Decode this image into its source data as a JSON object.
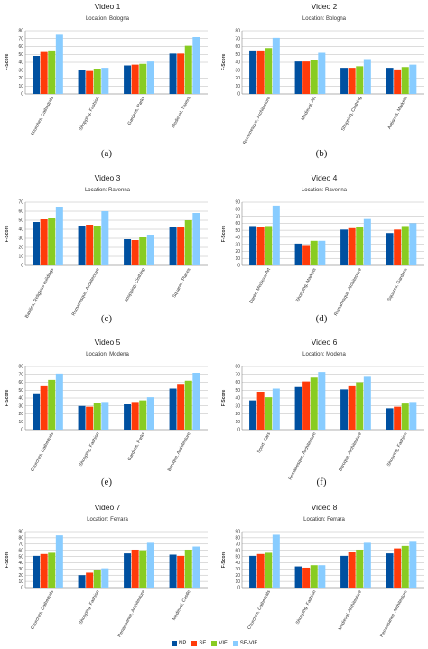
{
  "legend": [
    {
      "label": "NP",
      "color": "#0050a0"
    },
    {
      "label": "SE",
      "color": "#ff3b0a"
    },
    {
      "label": "VIF",
      "color": "#88cc22"
    },
    {
      "label": "SE-VIF",
      "color": "#88ccff"
    }
  ],
  "captions": [
    "(a)",
    "(b)",
    "(c)",
    "(d)",
    "(e)",
    "(f)",
    "(g)",
    "(h)"
  ],
  "chart_data": [
    {
      "type": "bar",
      "title": "Video 1",
      "subtitle": "Location: Bologna",
      "ylabel": "F-Score",
      "ylim": [
        0,
        80
      ],
      "yticks": [
        0,
        10,
        20,
        30,
        40,
        50,
        60,
        70,
        80
      ],
      "grid": true,
      "categories": [
        "Churches, Cathedrals",
        "Shopping, Fashion",
        "Gardens, Parks",
        "Medieval, Towers"
      ],
      "series": [
        {
          "name": "NP",
          "values": [
            48,
            30,
            36,
            51
          ]
        },
        {
          "name": "SE",
          "values": [
            53,
            29,
            37,
            51
          ]
        },
        {
          "name": "VIF",
          "values": [
            55,
            32,
            38,
            61
          ]
        },
        {
          "name": "SE-VIF",
          "values": [
            75,
            33,
            41,
            72
          ]
        }
      ]
    },
    {
      "type": "bar",
      "title": "Video 2",
      "subtitle": "Location: Bologna",
      "ylabel": "F-Score",
      "ylim": [
        0,
        80
      ],
      "yticks": [
        0,
        10,
        20,
        30,
        40,
        50,
        60,
        70,
        80
      ],
      "grid": true,
      "categories": [
        "Romanesque, Architecture",
        "Medieval, Art",
        "Shopping, Clothing",
        "Antiques, Markets"
      ],
      "series": [
        {
          "name": "NP",
          "values": [
            55,
            41,
            33,
            33
          ]
        },
        {
          "name": "SE",
          "values": [
            55,
            41,
            33,
            31
          ]
        },
        {
          "name": "VIF",
          "values": [
            58,
            43,
            35,
            34
          ]
        },
        {
          "name": "SE-VIF",
          "values": [
            71,
            52,
            44,
            37
          ]
        }
      ]
    },
    {
      "type": "bar",
      "title": "Video 3",
      "subtitle": "Location: Ravenna",
      "ylabel": "F-Score",
      "ylim": [
        0,
        70
      ],
      "yticks": [
        0,
        10,
        20,
        30,
        40,
        50,
        60,
        70
      ],
      "grid": true,
      "categories": [
        "Basilica, Religious buildings",
        "Romanesque, Architecture",
        "Shopping, Clothing",
        "Squares, Places"
      ],
      "series": [
        {
          "name": "NP",
          "values": [
            48,
            44,
            29,
            42
          ]
        },
        {
          "name": "SE",
          "values": [
            51,
            45,
            28,
            43
          ]
        },
        {
          "name": "VIF",
          "values": [
            53,
            44,
            31,
            50
          ]
        },
        {
          "name": "SE-VIF",
          "values": [
            65,
            60,
            34,
            58
          ]
        }
      ]
    },
    {
      "type": "bar",
      "title": "Video 4",
      "subtitle": "Location: Ravenna",
      "ylabel": "F-Score",
      "ylim": [
        0,
        90
      ],
      "yticks": [
        0,
        10,
        20,
        30,
        40,
        50,
        60,
        70,
        80,
        90
      ],
      "grid": true,
      "categories": [
        "Dante, Medieval Art",
        "Shopping, Markets",
        "Romanesque, Architecture",
        "Squares, Gardens"
      ],
      "series": [
        {
          "name": "NP",
          "values": [
            56,
            31,
            51,
            46
          ]
        },
        {
          "name": "SE",
          "values": [
            54,
            29,
            53,
            51
          ]
        },
        {
          "name": "VIF",
          "values": [
            56,
            35,
            55,
            56
          ]
        },
        {
          "name": "SE-VIF",
          "values": [
            85,
            35,
            66,
            60
          ]
        }
      ]
    },
    {
      "type": "bar",
      "title": "Video 5",
      "subtitle": "Location: Modena",
      "ylabel": "F-Score",
      "ylim": [
        0,
        80
      ],
      "yticks": [
        0,
        10,
        20,
        30,
        40,
        50,
        60,
        70,
        80
      ],
      "grid": true,
      "categories": [
        "Churches, Cathedrals",
        "Shopping, Fashion",
        "Gardens, Parks",
        "Baroque, Architecture"
      ],
      "series": [
        {
          "name": "NP",
          "values": [
            46,
            30,
            32,
            52
          ]
        },
        {
          "name": "SE",
          "values": [
            55,
            29,
            35,
            58
          ]
        },
        {
          "name": "VIF",
          "values": [
            63,
            34,
            37,
            62
          ]
        },
        {
          "name": "SE-VIF",
          "values": [
            71,
            35,
            41,
            72
          ]
        }
      ]
    },
    {
      "type": "bar",
      "title": "Video 6",
      "subtitle": "Location: Modena",
      "ylabel": "F-Score",
      "ylim": [
        0,
        80
      ],
      "yticks": [
        0,
        10,
        20,
        30,
        40,
        50,
        60,
        70,
        80
      ],
      "grid": true,
      "categories": [
        "Sport, Cars",
        "Romanesque, Architecture",
        "Baroque, Architecture",
        "Shopping, Fashion"
      ],
      "series": [
        {
          "name": "NP",
          "values": [
            37,
            54,
            51,
            27
          ]
        },
        {
          "name": "SE",
          "values": [
            48,
            61,
            55,
            29
          ]
        },
        {
          "name": "VIF",
          "values": [
            41,
            66,
            60,
            33
          ]
        },
        {
          "name": "SE-VIF",
          "values": [
            52,
            73,
            67,
            35
          ]
        }
      ]
    },
    {
      "type": "bar",
      "title": "Video 7",
      "subtitle": "Location: Ferrara",
      "ylabel": "F-Score",
      "ylim": [
        0,
        90
      ],
      "yticks": [
        0,
        10,
        20,
        30,
        40,
        50,
        60,
        70,
        80,
        90
      ],
      "grid": true,
      "categories": [
        "Churches, Cathedrals",
        "Shopping, Fashion",
        "Renaissance, Architecture",
        "Medieval, Castle"
      ],
      "series": [
        {
          "name": "NP",
          "values": [
            51,
            20,
            55,
            53
          ]
        },
        {
          "name": "SE",
          "values": [
            54,
            24,
            61,
            51
          ]
        },
        {
          "name": "VIF",
          "values": [
            56,
            28,
            60,
            61
          ]
        },
        {
          "name": "SE-VIF",
          "values": [
            84,
            31,
            72,
            66
          ]
        }
      ]
    },
    {
      "type": "bar",
      "title": "Video 8",
      "subtitle": "Location: Ferrara",
      "ylabel": "F-Score",
      "ylim": [
        0,
        90
      ],
      "yticks": [
        0,
        10,
        20,
        30,
        40,
        50,
        60,
        70,
        80,
        90
      ],
      "grid": true,
      "categories": [
        "Churches, Cathedrals",
        "Shopping, Fashion",
        "Medieval, Architecture",
        "Renaissance, Architecture"
      ],
      "series": [
        {
          "name": "NP",
          "values": [
            51,
            34,
            51,
            55
          ]
        },
        {
          "name": "SE",
          "values": [
            54,
            32,
            57,
            63
          ]
        },
        {
          "name": "VIF",
          "values": [
            56,
            36,
            61,
            67
          ]
        },
        {
          "name": "SE-VIF",
          "values": [
            85,
            36,
            72,
            75
          ]
        }
      ]
    }
  ]
}
